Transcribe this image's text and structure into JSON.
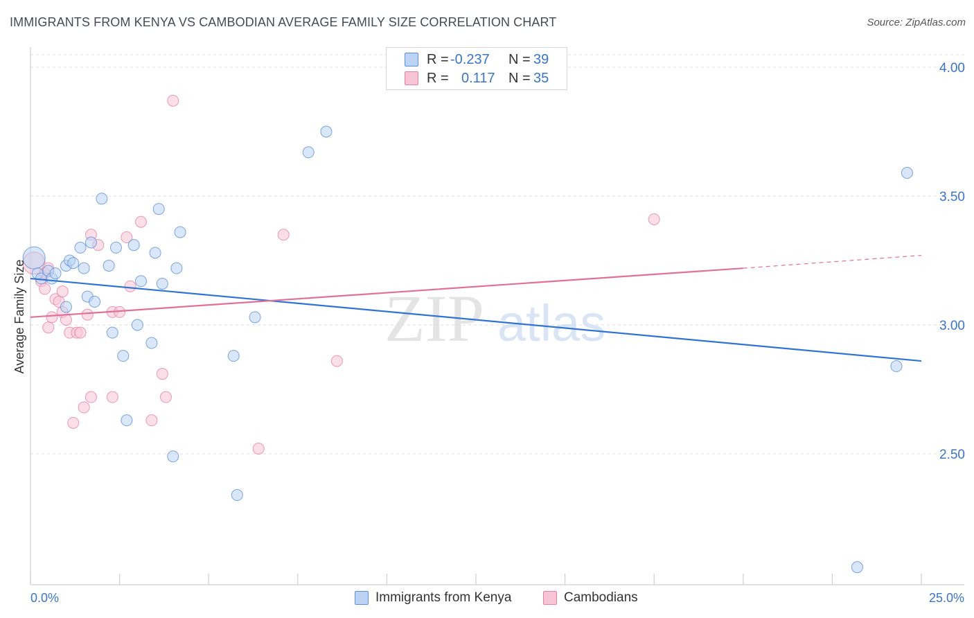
{
  "header": {
    "title": "IMMIGRANTS FROM KENYA VS CAMBODIAN AVERAGE FAMILY SIZE CORRELATION CHART",
    "source": "Source: ZipAtlas.com"
  },
  "watermark": {
    "zip": "ZIP",
    "atlas": "atlas"
  },
  "stats": [
    {
      "r_label": "R =",
      "r_value": "-0.237",
      "n_label": "N =",
      "n_value": "39",
      "color": "#a9c6f0"
    },
    {
      "r_label": "R =",
      "r_value": "0.117",
      "n_label": "N =",
      "n_value": "35",
      "color": "#f5b8cd"
    }
  ],
  "legend": {
    "kenya": "Immigrants from Kenya",
    "cambodians": "Cambodians"
  },
  "axis_labels": {
    "x_min": "0.0%",
    "x_max": "25.0%",
    "y_ticks": [
      "4.00",
      "3.50",
      "3.00",
      "2.50"
    ]
  },
  "chart_data": {
    "type": "scatter",
    "title": "IMMIGRANTS FROM KENYA VS CAMBODIAN AVERAGE FAMILY SIZE CORRELATION CHART",
    "xlabel": "",
    "ylabel": "Average Family Size",
    "xlim": [
      0,
      25
    ],
    "ylim": [
      2.05,
      4.05
    ],
    "y_ticks": [
      2.5,
      3.0,
      3.5,
      4.0
    ],
    "grid": true,
    "legend_position": "bottom",
    "series": [
      {
        "name": "Immigrants from Kenya",
        "color": "#5b8fd6",
        "fill": "#bcd3f3",
        "trend": {
          "x": [
            0,
            25
          ],
          "y": [
            3.18,
            2.86
          ]
        },
        "points": [
          [
            0.1,
            3.26,
            "large"
          ],
          [
            0.2,
            3.2
          ],
          [
            0.3,
            3.18
          ],
          [
            0.5,
            3.21
          ],
          [
            0.6,
            3.18
          ],
          [
            0.7,
            3.2
          ],
          [
            1.0,
            3.23
          ],
          [
            1.0,
            3.07
          ],
          [
            1.1,
            3.25
          ],
          [
            1.2,
            3.24
          ],
          [
            1.4,
            3.3
          ],
          [
            1.5,
            3.22
          ],
          [
            1.6,
            3.11
          ],
          [
            1.7,
            3.32
          ],
          [
            1.8,
            3.09
          ],
          [
            2.0,
            3.49
          ],
          [
            2.2,
            3.23
          ],
          [
            2.3,
            2.97
          ],
          [
            2.4,
            3.3
          ],
          [
            2.6,
            2.88
          ],
          [
            2.7,
            2.63
          ],
          [
            2.9,
            3.31
          ],
          [
            3.0,
            3.0
          ],
          [
            3.1,
            3.17
          ],
          [
            3.4,
            2.93
          ],
          [
            3.5,
            3.28
          ],
          [
            3.6,
            3.45
          ],
          [
            3.7,
            3.16
          ],
          [
            4.0,
            2.49
          ],
          [
            4.1,
            3.22
          ],
          [
            4.2,
            3.36
          ],
          [
            5.7,
            2.88
          ],
          [
            5.8,
            2.34
          ],
          [
            6.3,
            3.03
          ],
          [
            7.8,
            3.67
          ],
          [
            8.3,
            3.75
          ],
          [
            23.2,
            2.06
          ],
          [
            24.3,
            2.84
          ],
          [
            24.6,
            3.59
          ]
        ]
      },
      {
        "name": "Cambodians",
        "color": "#e77fa3",
        "fill": "#f7c4d6",
        "trend": {
          "x": [
            0,
            20
          ],
          "y": [
            3.03,
            3.22
          ]
        },
        "trend_dashed": {
          "x": [
            20,
            25
          ],
          "y": [
            3.22,
            3.27
          ]
        },
        "points": [
          [
            0.1,
            3.24,
            "large"
          ],
          [
            0.3,
            3.17
          ],
          [
            0.4,
            3.2
          ],
          [
            0.4,
            3.14
          ],
          [
            0.5,
            3.22
          ],
          [
            0.5,
            2.99
          ],
          [
            0.6,
            3.03
          ],
          [
            0.7,
            3.1
          ],
          [
            0.8,
            3.09
          ],
          [
            0.9,
            3.13
          ],
          [
            0.9,
            3.05
          ],
          [
            1.0,
            3.02
          ],
          [
            1.1,
            2.97
          ],
          [
            1.2,
            2.62
          ],
          [
            1.3,
            2.97
          ],
          [
            1.4,
            2.97
          ],
          [
            1.5,
            2.68
          ],
          [
            1.6,
            3.04
          ],
          [
            1.7,
            3.35
          ],
          [
            1.7,
            2.72
          ],
          [
            1.9,
            3.31
          ],
          [
            2.3,
            3.05
          ],
          [
            2.3,
            2.72
          ],
          [
            2.5,
            3.05
          ],
          [
            2.7,
            3.34
          ],
          [
            2.8,
            3.15
          ],
          [
            3.1,
            3.4
          ],
          [
            3.4,
            2.63
          ],
          [
            3.7,
            2.81
          ],
          [
            3.8,
            2.72
          ],
          [
            4.0,
            3.87
          ],
          [
            6.4,
            2.52
          ],
          [
            7.1,
            3.35
          ],
          [
            8.6,
            2.86
          ],
          [
            17.5,
            3.41
          ]
        ]
      }
    ]
  }
}
